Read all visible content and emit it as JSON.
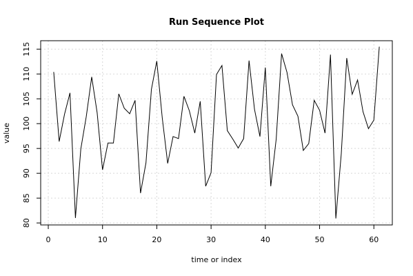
{
  "chart_data": {
    "type": "line",
    "title": "Run Sequence Plot",
    "xlabel": "time or index",
    "ylabel": "value",
    "xlim": [
      -1.4,
      63.4
    ],
    "ylim": [
      79.6,
      116.7
    ],
    "xticks": [
      0,
      10,
      20,
      30,
      40,
      50,
      60
    ],
    "yticks": [
      80,
      85,
      90,
      95,
      100,
      105,
      110,
      115
    ],
    "grid": true,
    "series": [
      {
        "x": [
          1,
          2,
          3,
          4,
          5,
          6,
          7,
          8,
          9,
          10,
          11,
          12,
          13,
          14,
          15,
          16,
          17,
          18,
          19,
          20,
          21,
          22,
          23,
          24,
          25,
          26,
          27,
          28,
          29,
          30,
          31,
          32,
          33,
          34,
          35,
          36,
          37,
          38,
          39,
          40,
          41,
          42,
          43,
          44,
          45,
          46,
          47,
          48,
          49,
          50,
          51,
          52,
          53,
          54,
          55,
          56,
          57,
          58,
          59,
          60,
          61
        ],
        "values": [
          110.4,
          96.4,
          101.9,
          106.2,
          81.0,
          94.9,
          101.4,
          109.4,
          102.2,
          90.7,
          96.1,
          96.1,
          106.0,
          103.1,
          102.0,
          104.7,
          86.0,
          92.1,
          106.9,
          112.6,
          101.2,
          92.0,
          97.4,
          97.0,
          105.5,
          102.6,
          98.1,
          104.5,
          87.4,
          90.1,
          109.9,
          111.7,
          98.6,
          96.9,
          95.1,
          97.0,
          112.7,
          102.9,
          97.4,
          111.3,
          87.4,
          96.9,
          114.1,
          110.3,
          103.8,
          101.5,
          94.6,
          96.0,
          104.7,
          102.7,
          98.1,
          113.9,
          80.9,
          94.0,
          113.2,
          105.9,
          108.8,
          102.4,
          99.0,
          100.7,
          115.5
        ]
      }
    ]
  }
}
